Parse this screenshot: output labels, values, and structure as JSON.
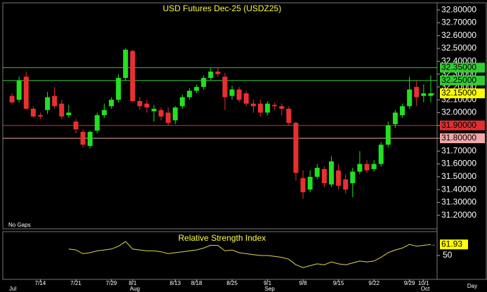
{
  "chart_data": {
    "type": "candlestick",
    "title": "USD Futures Dec-25 (USDZ25)",
    "categories": [
      null,
      null,
      null,
      null,
      "7/14",
      null,
      null,
      null,
      null,
      "7/21",
      null,
      null,
      null,
      null,
      "7/29",
      null,
      null,
      "8/1",
      null,
      null,
      null,
      null,
      null,
      "8/13",
      null,
      null,
      "8/18",
      null,
      null,
      null,
      null,
      "8/25",
      null,
      null,
      null,
      null,
      "9/1",
      null,
      null,
      null,
      null,
      "9/8",
      null,
      null,
      null,
      null,
      "9/15",
      null,
      null,
      null,
      null,
      "9/22",
      null,
      null,
      null,
      null,
      "9/29",
      null,
      "10/1",
      null
    ],
    "months": [
      "Jul",
      null,
      null,
      null,
      null,
      null,
      null,
      null,
      null,
      null,
      null,
      null,
      null,
      null,
      null,
      null,
      null,
      "Aug",
      null,
      null,
      null,
      null,
      null,
      null,
      null,
      null,
      null,
      null,
      null,
      null,
      null,
      null,
      null,
      null,
      null,
      null,
      "Sep",
      null,
      null,
      null,
      null,
      null,
      null,
      null,
      null,
      null,
      null,
      null,
      null,
      null,
      null,
      null,
      null,
      null,
      null,
      null,
      null,
      null,
      "Oct",
      null
    ],
    "open": [
      32.13,
      32.1,
      32.28,
      32.03,
      31.98,
      32.02,
      32.13,
      32.07,
      31.98,
      31.93,
      31.85,
      31.74,
      31.86,
      31.98,
      32.05,
      32.1,
      32.27,
      32.48,
      32.09,
      32.07,
      32.01,
      32.02,
      32.0,
      31.94,
      32.05,
      32.12,
      32.17,
      32.2,
      32.27,
      32.32,
      32.28,
      32.13,
      32.18,
      32.15,
      32.07,
      32.07,
      32.0,
      32.06,
      32.05,
      32.03,
      31.92,
      31.49,
      31.4,
      31.5,
      31.56,
      31.44,
      31.55,
      31.48,
      31.45,
      31.54,
      31.6,
      31.56,
      31.6,
      31.75,
      31.91,
      31.98,
      32.05,
      32.2,
      32.13,
      32.13
    ],
    "high": [
      32.15,
      32.28,
      32.32,
      32.05,
      32.0,
      32.16,
      32.2,
      32.1,
      32.06,
      31.95,
      31.87,
      31.86,
      32.0,
      32.07,
      32.12,
      32.3,
      32.5,
      32.49,
      32.12,
      32.1,
      32.06,
      32.04,
      32.04,
      32.05,
      32.14,
      32.19,
      32.22,
      32.29,
      32.35,
      32.35,
      32.31,
      32.21,
      32.2,
      32.17,
      32.1,
      32.1,
      32.09,
      32.08,
      32.07,
      32.05,
      31.93,
      31.55,
      31.55,
      31.6,
      31.58,
      31.66,
      31.6,
      31.52,
      31.57,
      31.7,
      31.63,
      31.63,
      31.77,
      31.93,
      32.02,
      32.07,
      32.28,
      32.25,
      32.22,
      32.29
    ],
    "low": [
      32.07,
      32.08,
      32.02,
      31.96,
      31.95,
      31.99,
      32.03,
      31.95,
      31.96,
      31.84,
      31.73,
      31.72,
      31.84,
      31.96,
      32.03,
      32.08,
      32.25,
      32.08,
      32.02,
      32.0,
      31.93,
      31.94,
      31.9,
      31.91,
      32.03,
      32.1,
      32.15,
      32.18,
      32.25,
      32.28,
      32.02,
      32.1,
      32.08,
      32.05,
      32.0,
      31.97,
      31.98,
      32.02,
      31.98,
      31.9,
      31.47,
      31.33,
      31.38,
      31.48,
      31.42,
      31.42,
      31.4,
      31.37,
      31.34,
      31.52,
      31.53,
      31.54,
      31.58,
      31.73,
      31.88,
      31.96,
      32.03,
      32.05,
      32.08,
      32.08
    ],
    "close": [
      32.08,
      32.25,
      32.03,
      31.97,
      31.97,
      32.12,
      32.05,
      31.97,
      32.0,
      31.87,
      31.75,
      31.85,
      31.98,
      32.02,
      32.1,
      32.27,
      32.49,
      32.09,
      32.05,
      32.04,
      32.03,
      31.97,
      31.92,
      32.04,
      32.12,
      32.17,
      32.2,
      32.27,
      32.32,
      32.3,
      32.12,
      32.18,
      32.1,
      32.07,
      32.05,
      32.0,
      32.07,
      32.05,
      32.03,
      31.92,
      31.53,
      31.38,
      31.5,
      31.57,
      31.45,
      31.62,
      31.43,
      31.4,
      31.54,
      31.6,
      31.55,
      31.6,
      31.75,
      31.9,
      32.0,
      32.05,
      32.18,
      32.12,
      32.15,
      32.15
    ],
    "up_color": "#22e022",
    "down_color": "#e83030",
    "ylim": [
      31.1,
      32.85
    ],
    "yticks": [
      {
        "value": 32.8,
        "label": "32.80000"
      },
      {
        "value": 32.7,
        "label": "32.70000"
      },
      {
        "value": 32.6,
        "label": "32.60000"
      },
      {
        "value": 32.5,
        "label": "32.50000"
      },
      {
        "value": 32.4,
        "label": "32.40000"
      },
      {
        "value": 32.3,
        "label": "32.30000"
      },
      {
        "value": 32.2,
        "label": "32.20000"
      },
      {
        "value": 32.1,
        "label": "32.10000"
      },
      {
        "value": 32.0,
        "label": "32.00000"
      },
      {
        "value": 31.9,
        "label": "31.90000"
      },
      {
        "value": 31.8,
        "label": "31.80000"
      },
      {
        "value": 31.7,
        "label": "31.70000"
      },
      {
        "value": 31.6,
        "label": "31.60000"
      },
      {
        "value": 31.5,
        "label": "31.50000"
      },
      {
        "value": 31.4,
        "label": "31.40000"
      },
      {
        "value": 31.3,
        "label": "31.30000"
      },
      {
        "value": 31.2,
        "label": "31.20000"
      }
    ],
    "levels": [
      {
        "value": 32.35,
        "label": "32.35000",
        "color": "#33cc33"
      },
      {
        "value": 32.25,
        "label": "32.25000",
        "color": "#33cc33"
      },
      {
        "value": 31.9,
        "label": "31.90000",
        "color": "#dd3030"
      },
      {
        "value": 31.8,
        "label": "31.80000",
        "color": "#f0a8a8"
      }
    ],
    "last_price": {
      "value": 32.15,
      "label": "32.15000",
      "color": "#ffff00"
    },
    "gap_mode": "No Gaps",
    "x_unit": "Day",
    "rsi": {
      "type": "line",
      "title": "Relative Strength Index",
      "color": "#e0d850",
      "ylim": [
        25,
        75
      ],
      "yticks": [
        50
      ],
      "values": [
        null,
        null,
        null,
        null,
        null,
        null,
        null,
        null,
        57,
        56,
        52,
        53,
        55,
        56,
        57,
        60,
        65,
        57,
        56,
        55,
        55,
        54,
        52,
        53,
        54,
        55,
        56,
        58,
        61,
        61,
        55,
        56,
        53,
        52,
        51,
        50,
        50,
        49,
        48,
        46,
        40,
        37,
        39,
        41,
        40,
        43,
        41,
        40,
        42,
        44,
        43,
        44,
        48,
        53,
        56,
        58,
        62,
        60,
        61,
        61.93
      ]
    }
  }
}
